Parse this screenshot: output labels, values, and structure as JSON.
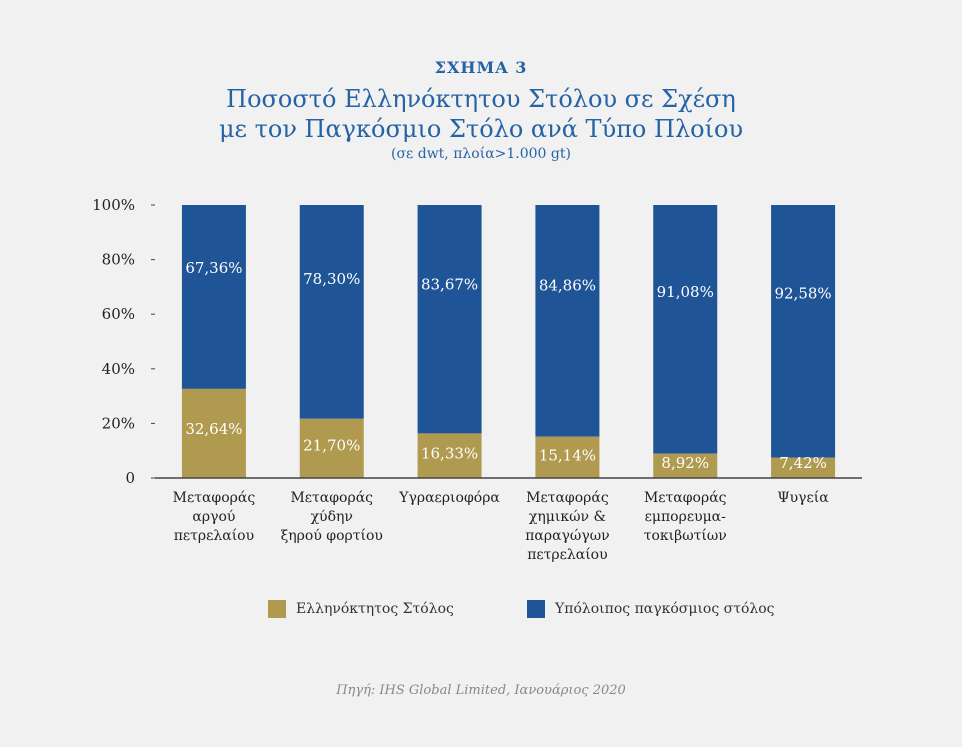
{
  "header": {
    "label": "ΣΧΗΜΑ 3",
    "title_line1": "Ποσοστό Ελληνόκτητου Στόλου σε Σχέση",
    "title_line2": "με τον Παγκόσμιο Στόλο ανά Τύπο Πλοίου",
    "subtitle": "(σε dwt, πλοία>1.000 gt)"
  },
  "legend": {
    "greek": "Ελληνόκτητος Στόλος",
    "rest": "Υπόλοιπος παγκόσμιος στόλος"
  },
  "source": "Πηγή: IHS Global Limited, Ιανουάριος 2020",
  "colors": {
    "greek": "#b09a4f",
    "rest": "#1f5596",
    "background": "#f1f1f1",
    "axis": "#444444"
  },
  "chart_data": {
    "type": "bar",
    "stacked": true,
    "categories": [
      [
        "Μεταφοράς",
        "αργού",
        "πετρελαίου"
      ],
      [
        "Μεταφοράς",
        "χύδην",
        "ξηρού φορτίου"
      ],
      [
        "Υγραεριοφόρα"
      ],
      [
        "Μεταφοράς",
        "χημικών &",
        "παραγώγων",
        "πετρελαίου"
      ],
      [
        "Μεταφοράς",
        "εμπορευμα-",
        "τοκιβωτίων"
      ],
      [
        "Ψυγεία"
      ]
    ],
    "series": [
      {
        "name": "Ελληνόκτητος Στόλος",
        "values": [
          32.64,
          21.7,
          16.33,
          15.14,
          8.92,
          7.42
        ],
        "labels": [
          "32,64%",
          "21,70%",
          "16,33%",
          "15,14%",
          "8,92%",
          "7,42%"
        ]
      },
      {
        "name": "Υπόλοιπος παγκόσμιος στόλος",
        "values": [
          67.36,
          78.3,
          83.67,
          84.86,
          91.08,
          92.58
        ],
        "labels": [
          "67,36%",
          "78,30%",
          "83,67%",
          "84,86%",
          "91,08%",
          "92,58%"
        ]
      }
    ],
    "yticks": [
      0,
      20,
      40,
      60,
      80,
      100
    ],
    "ytick_labels": [
      "0",
      "20%",
      "40%",
      "60%",
      "80%",
      "100%"
    ],
    "ylim": [
      0,
      100
    ],
    "xlabel": "",
    "ylabel": "",
    "grid": false,
    "legend_position": "bottom"
  }
}
